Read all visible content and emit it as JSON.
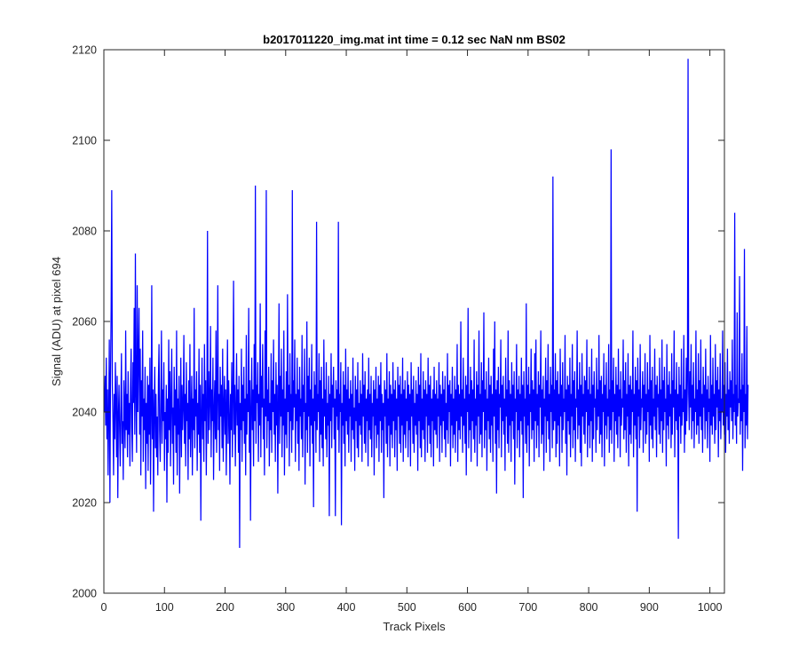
{
  "chart_data": {
    "type": "line",
    "title": "b2017011220_img.mat int time = 0.12 sec  NaN nm BS02",
    "xlabel": "Track Pixels",
    "ylabel": "Signal (ADU) at pixel 694",
    "xlim": [
      0,
      1024
    ],
    "ylim": [
      2000,
      2120
    ],
    "xticks": [
      "0",
      "100",
      "200",
      "300",
      "400",
      "500",
      "600",
      "700",
      "800",
      "900",
      "1000"
    ],
    "yticks": [
      "2000",
      "2020",
      "2040",
      "2060",
      "2080",
      "2100",
      "2120"
    ],
    "grid": false,
    "legend": "none",
    "series": [
      {
        "color": "#0000ff",
        "x_start": 1,
        "x_step": 1,
        "values": [
          2040,
          2048,
          2037,
          2052,
          2034,
          2045,
          2026,
          2040,
          2056,
          2020,
          2048,
          2063,
          2089,
          2046,
          2038,
          2026,
          2044,
          2034,
          2051,
          2042,
          2030,
          2048,
          2021,
          2039,
          2046,
          2036,
          2028,
          2041,
          2053,
          2033,
          2038,
          2025,
          2047,
          2040,
          2032,
          2058,
          2036,
          2044,
          2030,
          2049,
          2035,
          2042,
          2028,
          2046,
          2054,
          2037,
          2029,
          2051,
          2042,
          2063,
          2035,
          2075,
          2044,
          2031,
          2068,
          2040,
          2052,
          2063,
          2035,
          2054,
          2026,
          2047,
          2039,
          2058,
          2029,
          2043,
          2036,
          2050,
          2023,
          2042,
          2033,
          2048,
          2027,
          2046,
          2035,
          2052,
          2024,
          2039,
          2068,
          2034,
          2045,
          2018,
          2041,
          2050,
          2032,
          2044,
          2030,
          2039,
          2026,
          2047,
          2055,
          2036,
          2029,
          2042,
          2058,
          2033,
          2045,
          2038,
          2051,
          2027,
          2040,
          2034,
          2046,
          2020,
          2043,
          2031,
          2056,
          2036,
          2049,
          2028,
          2042,
          2054,
          2033,
          2041,
          2024,
          2050,
          2037,
          2045,
          2031,
          2058,
          2026,
          2043,
          2035,
          2048,
          2022,
          2039,
          2052,
          2030,
          2046,
          2036,
          2041,
          2057,
          2033,
          2044,
          2028,
          2051,
          2038,
          2042,
          2025,
          2047,
          2034,
          2055,
          2030,
          2040,
          2048,
          2026,
          2043,
          2036,
          2063,
          2032,
          2045,
          2039,
          2049,
          2027,
          2042,
          2035,
          2054,
          2031,
          2046,
          2016,
          2040,
          2052,
          2034,
          2044,
          2029,
          2055,
          2038,
          2047,
          2026,
          2041,
          2080,
          2033,
          2049,
          2036,
          2043,
          2059,
          2030,
          2045,
          2038,
          2052,
          2025,
          2040,
          2047,
          2034,
          2058,
          2031,
          2043,
          2068,
          2036,
          2044,
          2027,
          2050,
          2039,
          2046,
          2032,
          2054,
          2029,
          2041,
          2048,
          2035,
          2045,
          2026,
          2042,
          2056,
          2033,
          2047,
          2039,
          2024,
          2044,
          2036,
          2051,
          2030,
          2043,
          2069,
          2035,
          2046,
          2028,
          2041,
          2053,
          2037,
          2045,
          2031,
          2048,
          2010,
          2042,
          2036,
          2054,
          2029,
          2046,
          2038,
          2050,
          2033,
          2043,
          2026,
          2057,
          2035,
          2044,
          2040,
          2063,
          2031,
          2047,
          2016,
          2041,
          2052,
          2036,
          2045,
          2028,
          2055,
          2038,
          2090,
          2033,
          2046,
          2042,
          2051,
          2029,
          2044,
          2037,
          2064,
          2030,
          2048,
          2041,
          2055,
          2034,
          2043,
          2026,
          2058,
          2039,
          2089,
          2032,
          2045,
          2038,
          2050,
          2028,
          2042,
          2036,
          2053,
          2031,
          2047,
          2040,
          2056,
          2035,
          2044,
          2029,
          2051,
          2037,
          2046,
          2022,
          2042,
          2064,
          2033,
          2048,
          2039,
          2054,
          2030,
          2045,
          2037,
          2058,
          2026,
          2043,
          2035,
          2049,
          2032,
          2066,
          2040,
          2046,
          2028,
          2053,
          2038,
          2044,
          2031,
          2089,
          2036,
          2047,
          2041,
          2056,
          2029,
          2044,
          2038,
          2052,
          2033,
          2045,
          2027,
          2050,
          2039,
          2043,
          2034,
          2057,
          2030,
          2046,
          2040,
          2054,
          2024,
          2042,
          2036,
          2060,
          2031,
          2048,
          2039,
          2052,
          2028,
          2045,
          2037,
          2055,
          2033,
          2043,
          2019,
          2049,
          2038,
          2046,
          2031,
          2082,
          2036,
          2044,
          2040,
          2053,
          2029,
          2047,
          2035,
          2050,
          2032,
          2043,
          2028,
          2056,
          2039,
          2045,
          2034,
          2051,
          2030,
          2042,
          2037,
          2048,
          2017,
          2044,
          2038,
          2053,
          2032,
          2046,
          2041,
          2050,
          2034,
          2043,
          2017,
          2047,
          2039,
          2045,
          2036,
          2082,
          2031,
          2044,
          2040,
          2051,
          2015,
          2042,
          2037,
          2049,
          2033,
          2046,
          2028,
          2054,
          2038,
          2045,
          2035,
          2050,
          2031,
          2043,
          2039,
          2047,
          2029,
          2044,
          2036,
          2052,
          2034,
          2041,
          2027,
          2048,
          2038,
          2045,
          2032,
          2051,
          2030,
          2042,
          2037,
          2047,
          2035,
          2044,
          2029,
          2053,
          2039,
          2046,
          2033,
          2049,
          2031,
          2043,
          2038,
          2045,
          2028,
          2052,
          2036,
          2044,
          2034,
          2048,
          2030,
          2042,
          2039,
          2047,
          2026,
          2045,
          2037,
          2050,
          2032,
          2043,
          2035,
          2048,
          2029,
          2046,
          2038,
          2051,
          2031,
          2044,
          2036,
          2042,
          2021,
          2047,
          2039,
          2045,
          2033,
          2053,
          2030,
          2043,
          2037,
          2049,
          2028,
          2046,
          2035,
          2044,
          2032,
          2051,
          2038,
          2045,
          2030,
          2047,
          2036,
          2043,
          2027,
          2050,
          2039,
          2046,
          2033,
          2048,
          2031,
          2044,
          2037,
          2052,
          2029,
          2045,
          2035,
          2047,
          2032,
          2043,
          2038,
          2049,
          2030,
          2046,
          2036,
          2044,
          2028,
          2051,
          2039,
          2045,
          2033,
          2048,
          2031,
          2042,
          2037,
          2047,
          2035,
          2044,
          2027,
          2050,
          2038,
          2046,
          2032,
          2053,
          2030,
          2043,
          2036,
          2049,
          2034,
          2045,
          2029,
          2047,
          2039,
          2044,
          2031,
          2052,
          2037,
          2046,
          2033,
          2048,
          2030,
          2043,
          2038,
          2045,
          2028,
          2050,
          2036,
          2044,
          2035,
          2047,
          2032,
          2043,
          2039,
          2051,
          2029,
          2046,
          2037,
          2044,
          2031,
          2049,
          2038,
          2045,
          2034,
          2048,
          2030,
          2042,
          2036,
          2053,
          2033,
          2046,
          2040,
          2047,
          2028,
          2044,
          2037,
          2050,
          2032,
          2043,
          2035,
          2048,
          2031,
          2045,
          2038,
          2055,
          2029,
          2046,
          2036,
          2044,
          2034,
          2060,
          2039,
          2045,
          2031,
          2052,
          2037,
          2043,
          2033,
          2048,
          2026,
          2046,
          2040,
          2063,
          2032,
          2044,
          2036,
          2050,
          2029,
          2047,
          2038,
          2045,
          2034,
          2056,
          2031,
          2043,
          2037,
          2049,
          2028,
          2046,
          2039,
          2058,
          2033,
          2044,
          2035,
          2051,
          2030,
          2047,
          2040,
          2062,
          2032,
          2045,
          2036,
          2049,
          2027,
          2043,
          2038,
          2052,
          2034,
          2046,
          2031,
          2048,
          2037,
          2044,
          2029,
          2054,
          2039,
          2060,
          2033,
          2045,
          2022,
          2047,
          2036,
          2050,
          2032,
          2044,
          2041,
          2056,
          2030,
          2046,
          2038,
          2048,
          2035,
          2043,
          2027,
          2052,
          2039,
          2045,
          2033,
          2058,
          2031,
          2047,
          2037,
          2044,
          2029,
          2051,
          2038,
          2046,
          2034,
          2049,
          2024,
          2043,
          2040,
          2055,
          2032,
          2045,
          2036,
          2048,
          2030,
          2044,
          2038,
          2052,
          2035,
          2046,
          2021,
          2049,
          2039,
          2043,
          2033,
          2064,
          2031,
          2046,
          2037,
          2050,
          2028,
          2044,
          2040,
          2054,
          2034,
          2047,
          2036,
          2045,
          2029,
          2053,
          2038,
          2056,
          2032,
          2044,
          2037,
          2049,
          2030,
          2046,
          2041,
          2058,
          2033,
          2045,
          2035,
          2048,
          2027,
          2043,
          2039,
          2052,
          2031,
          2047,
          2038,
          2055,
          2034,
          2044,
          2029,
          2050,
          2040,
          2046,
          2032,
          2092,
          2036,
          2045,
          2038,
          2053,
          2030,
          2047,
          2033,
          2049,
          2037,
          2044,
          2028,
          2054,
          2039,
          2046,
          2031,
          2051,
          2036,
          2043,
          2040,
          2057,
          2033,
          2045,
          2026,
          2048,
          2038,
          2046,
          2035,
          2052,
          2030,
          2044,
          2039,
          2055,
          2032,
          2047,
          2036,
          2049,
          2029,
          2043,
          2041,
          2058,
          2034,
          2045,
          2037,
          2051,
          2031,
          2046,
          2028,
          2053,
          2039,
          2044,
          2035,
          2048,
          2033,
          2047,
          2040,
          2056,
          2030,
          2045,
          2037,
          2050,
          2032,
          2044,
          2038,
          2054,
          2029,
          2046,
          2034,
          2049,
          2041,
          2043,
          2031,
          2052,
          2036,
          2045,
          2039,
          2057,
          2033,
          2047,
          2035,
          2048,
          2030,
          2044,
          2040,
          2053,
          2028,
          2046,
          2037,
          2051,
          2034,
          2043,
          2039,
          2055,
          2031,
          2045,
          2036,
          2098,
          2033,
          2047,
          2040,
          2052,
          2029,
          2044,
          2038,
          2050,
          2035,
          2046,
          2032,
          2054,
          2039,
          2045,
          2030,
          2049,
          2037,
          2043,
          2041,
          2056,
          2034,
          2047,
          2036,
          2051,
          2031,
          2044,
          2039,
          2053,
          2028,
          2046,
          2035,
          2048,
          2033,
          2045,
          2040,
          2058,
          2030,
          2044,
          2037,
          2050,
          2034,
          2047,
          2018,
          2052,
          2039,
          2045,
          2032,
          2055,
          2036,
          2043,
          2041,
          2049,
          2031,
          2046,
          2038,
          2053,
          2033,
          2044,
          2035,
          2051,
          2040,
          2045,
          2029,
          2057,
          2037,
          2047,
          2034,
          2050,
          2032,
          2043,
          2039,
          2054,
          2036,
          2046,
          2030,
          2048,
          2041,
          2044,
          2035,
          2052,
          2033,
          2045,
          2038,
          2056,
          2031,
          2047,
          2036,
          2050,
          2040,
          2043,
          2028,
          2055,
          2037,
          2046,
          2034,
          2049,
          2039,
          2044,
          2032,
          2053,
          2035,
          2047,
          2041,
          2058,
          2030,
          2045,
          2038,
          2051,
          2036,
          2044,
          2012,
          2050,
          2039,
          2046,
          2033,
          2054,
          2037,
          2043,
          2040,
          2057,
          2031,
          2045,
          2035,
          2052,
          2038,
          2047,
          2118,
          2044,
          2036,
          2049,
          2041,
          2055,
          2034,
          2046,
          2038,
          2051,
          2032,
          2043,
          2040,
          2058,
          2035,
          2045,
          2037,
          2053,
          2033,
          2047,
          2039,
          2056,
          2036,
          2044,
          2031,
          2050,
          2041,
          2046,
          2034,
          2054,
          2038,
          2045,
          2032,
          2048,
          2040,
          2043,
          2029,
          2057,
          2037,
          2046,
          2035,
          2052,
          2039,
          2044,
          2033,
          2055,
          2036,
          2047,
          2041,
          2050,
          2030,
          2045,
          2038,
          2053,
          2034,
          2043,
          2040,
          2058,
          2037,
          2046,
          2035,
          2051,
          2031,
          2044,
          2039,
          2054,
          2036,
          2045,
          2033,
          2049,
          2041,
          2047,
          2038,
          2056,
          2034,
          2044,
          2040,
          2084,
          2037,
          2046,
          2033,
          2062,
          2039,
          2043,
          2042,
          2070,
          2035,
          2045,
          2038,
          2053,
          2027,
          2046,
          2040,
          2076,
          2032,
          2044,
          2037,
          2059,
          2034,
          2046
        ]
      }
    ]
  }
}
